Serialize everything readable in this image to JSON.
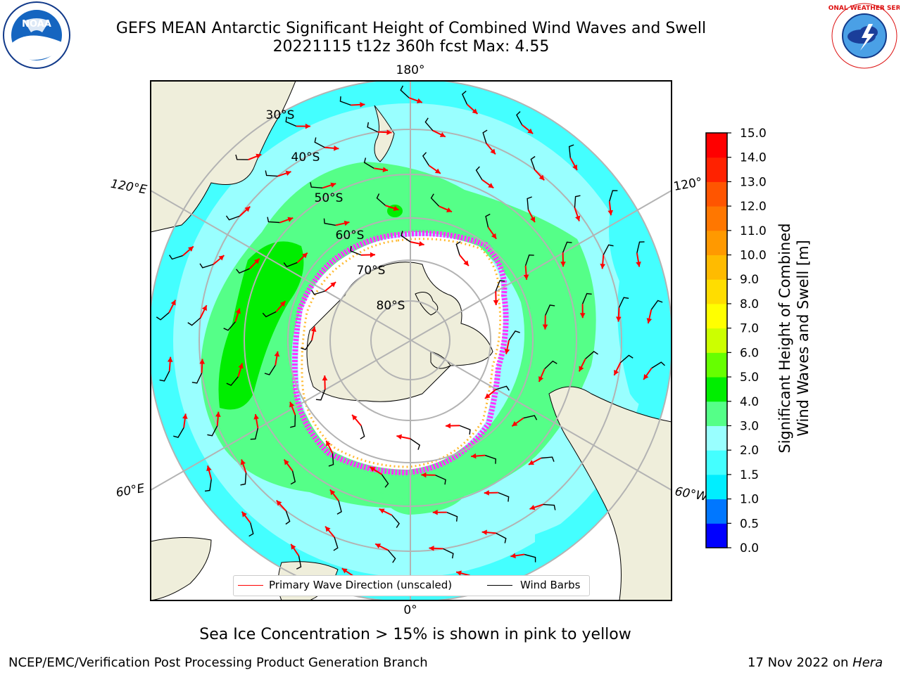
{
  "header": {
    "title_line1": "GEFS MEAN Antarctic Significant Height of Combined Wind Waves and Swell",
    "title_line2": "20221115 t12z 360h fcst   Max: 4.55"
  },
  "logos": {
    "left": {
      "name": "noaa-logo",
      "text": "NOAA"
    },
    "right": {
      "name": "national-weather-service-logo",
      "text": "NATIONAL WEATHER SERVICE"
    }
  },
  "map": {
    "projection": "south-polar-stereographic",
    "longitude_labels": [
      "180°",
      "120°E",
      "120°",
      "60°E",
      "60°W",
      "0°"
    ],
    "latitude_labels": [
      "30°S",
      "40°S",
      "50°S",
      "60°S",
      "70°S",
      "80°S"
    ],
    "colors": {
      "land": "#efeedb",
      "ice_sheet": "#ffffff",
      "sea_ice_pink": "#ff33ff",
      "sea_ice_orange": "#ffbb33",
      "wave_arrow": "#ff0000",
      "wind_barb": "#000000",
      "gridline": "#b3b3b3"
    },
    "legend": {
      "primary_wave_label": "Primary Wave Direction (unscaled)",
      "wind_barbs_label": "Wind Barbs"
    }
  },
  "colorbar": {
    "label": "Significant Height of Combined Wind Waves and Swell [m]",
    "label_line1": "Significant Height of Combined",
    "label_line2": "Wind Waves and Swell [m]",
    "ticks": [
      "0.0",
      "0.5",
      "1.0",
      "1.5",
      "2.0",
      "3.0",
      "4.0",
      "5.0",
      "6.0",
      "7.0",
      "8.0",
      "9.0",
      "10.0",
      "11.0",
      "12.0",
      "13.0",
      "14.0",
      "15.0"
    ],
    "colors": [
      "#0000ff",
      "#0077ff",
      "#00eeff",
      "#44ffff",
      "#99ffff",
      "#55ff88",
      "#00ee00",
      "#66ff00",
      "#ccff00",
      "#ffff00",
      "#ffdd00",
      "#ffbb00",
      "#ff9900",
      "#ff7700",
      "#ff5500",
      "#ff2200",
      "#ff0000"
    ]
  },
  "caption": "Sea Ice Concentration > 15% is shown in pink to yellow",
  "footer": {
    "left": "NCEP/EMC/Verification Post Processing Product Generation Branch",
    "right_prefix": "17 Nov 2022 on ",
    "right_host": "Hera"
  }
}
